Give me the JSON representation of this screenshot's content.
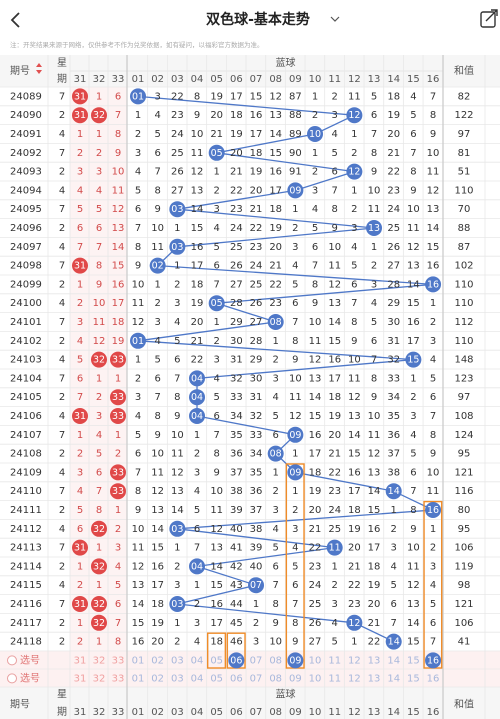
{
  "header": {
    "title": "双色球-基本走势"
  },
  "note": "注：开奖结果来源于网络，仅供参考不作为兑奖依据，如有疑问，以福彩官方数据为准。",
  "table": {
    "columns": {
      "period": "期号",
      "weekday": [
        "星",
        "期"
      ],
      "blue_group": "蓝球",
      "sum": "和值",
      "red": [
        "31",
        "32",
        "33"
      ],
      "blue": [
        "01",
        "02",
        "03",
        "04",
        "05",
        "06",
        "07",
        "08",
        "09",
        "10",
        "11",
        "12",
        "13",
        "14",
        "15",
        "16"
      ]
    },
    "rows": [
      {
        "period": "24089",
        "weekday": 7,
        "red": [
          "31",
          1,
          6
        ],
        "blue": [
          "01",
          3,
          22,
          8,
          19,
          17,
          15,
          12,
          87,
          1,
          2,
          11,
          5,
          18,
          4,
          7
        ],
        "sum": 82
      },
      {
        "period": "24090",
        "weekday": 2,
        "red": [
          "31",
          "32",
          7
        ],
        "blue": [
          1,
          4,
          23,
          9,
          20,
          18,
          16,
          13,
          88,
          2,
          3,
          "12",
          6,
          19,
          5,
          8
        ],
        "sum": 122
      },
      {
        "period": "24091",
        "weekday": 4,
        "red": [
          1,
          1,
          8
        ],
        "blue": [
          2,
          5,
          24,
          10,
          21,
          19,
          17,
          14,
          89,
          "10",
          4,
          1,
          7,
          20,
          6,
          9
        ],
        "sum": 97
      },
      {
        "period": "24092",
        "weekday": 7,
        "red": [
          2,
          2,
          9
        ],
        "blue": [
          3,
          6,
          25,
          11,
          "05",
          20,
          18,
          15,
          90,
          1,
          5,
          2,
          8,
          21,
          7,
          10
        ],
        "sum": 81
      },
      {
        "period": "24093",
        "weekday": 2,
        "red": [
          3,
          3,
          10
        ],
        "blue": [
          4,
          7,
          26,
          12,
          1,
          21,
          19,
          16,
          91,
          2,
          6,
          "12",
          9,
          22,
          8,
          11
        ],
        "sum": 51
      },
      {
        "period": "24094",
        "weekday": 4,
        "red": [
          4,
          4,
          11
        ],
        "blue": [
          5,
          8,
          27,
          13,
          2,
          22,
          20,
          17,
          "09",
          3,
          7,
          1,
          10,
          23,
          9,
          12
        ],
        "sum": 110
      },
      {
        "period": "24095",
        "weekday": 7,
        "red": [
          5,
          5,
          12
        ],
        "blue": [
          6,
          9,
          "03",
          14,
          3,
          23,
          21,
          18,
          1,
          4,
          8,
          2,
          11,
          24,
          10,
          13
        ],
        "sum": 70
      },
      {
        "period": "24096",
        "weekday": 2,
        "red": [
          6,
          6,
          13
        ],
        "blue": [
          7,
          10,
          1,
          15,
          4,
          24,
          22,
          19,
          2,
          5,
          9,
          3,
          "13",
          25,
          11,
          14
        ],
        "sum": 88
      },
      {
        "period": "24097",
        "weekday": 4,
        "red": [
          7,
          7,
          14
        ],
        "blue": [
          8,
          11,
          "03",
          16,
          5,
          25,
          23,
          20,
          3,
          6,
          10,
          4,
          1,
          26,
          12,
          15
        ],
        "sum": 87
      },
      {
        "period": "24098",
        "weekday": 7,
        "red": [
          "31",
          8,
          15
        ],
        "blue": [
          9,
          "02",
          1,
          17,
          6,
          26,
          24,
          21,
          4,
          7,
          11,
          5,
          2,
          27,
          13,
          16
        ],
        "sum": 102
      },
      {
        "period": "24099",
        "weekday": 2,
        "red": [
          1,
          9,
          16
        ],
        "blue": [
          10,
          1,
          2,
          18,
          7,
          27,
          25,
          22,
          5,
          8,
          12,
          6,
          3,
          28,
          14,
          "16"
        ],
        "sum": 110
      },
      {
        "period": "24100",
        "weekday": 4,
        "red": [
          2,
          10,
          17
        ],
        "blue": [
          11,
          2,
          3,
          19,
          "05",
          28,
          26,
          23,
          6,
          9,
          13,
          7,
          4,
          29,
          15,
          1
        ],
        "sum": 110
      },
      {
        "period": "24101",
        "weekday": 7,
        "red": [
          3,
          11,
          18
        ],
        "blue": [
          12,
          3,
          4,
          20,
          1,
          29,
          27,
          "08",
          7,
          10,
          14,
          8,
          5,
          30,
          16,
          2
        ],
        "sum": 112
      },
      {
        "period": "24102",
        "weekday": 2,
        "red": [
          4,
          12,
          19
        ],
        "blue": [
          "01",
          4,
          5,
          21,
          2,
          30,
          28,
          1,
          8,
          11,
          15,
          9,
          6,
          31,
          17,
          3
        ],
        "sum": 110
      },
      {
        "period": "24103",
        "weekday": 4,
        "red": [
          5,
          "32",
          "33"
        ],
        "blue": [
          1,
          5,
          6,
          22,
          3,
          31,
          29,
          2,
          9,
          12,
          16,
          10,
          7,
          32,
          "15",
          4
        ],
        "sum": 148
      },
      {
        "period": "24104",
        "weekday": 7,
        "red": [
          6,
          1,
          1
        ],
        "blue": [
          2,
          6,
          7,
          "04",
          4,
          32,
          30,
          3,
          10,
          13,
          17,
          11,
          8,
          33,
          1,
          5
        ],
        "sum": 123
      },
      {
        "period": "24105",
        "weekday": 2,
        "red": [
          7,
          2,
          "33"
        ],
        "blue": [
          3,
          7,
          8,
          "04",
          5,
          33,
          31,
          4,
          11,
          14,
          18,
          12,
          9,
          34,
          2,
          6
        ],
        "sum": 97
      },
      {
        "period": "24106",
        "weekday": 4,
        "red": [
          "31",
          3,
          "33"
        ],
        "blue": [
          4,
          8,
          9,
          "04",
          6,
          34,
          32,
          5,
          12,
          15,
          19,
          13,
          10,
          35,
          3,
          7
        ],
        "sum": 108
      },
      {
        "period": "24107",
        "weekday": 7,
        "red": [
          1,
          4,
          1
        ],
        "blue": [
          5,
          9,
          10,
          1,
          7,
          35,
          33,
          6,
          "09",
          16,
          20,
          14,
          11,
          36,
          4,
          8
        ],
        "sum": 124
      },
      {
        "period": "24108",
        "weekday": 2,
        "red": [
          2,
          5,
          2
        ],
        "blue": [
          6,
          10,
          11,
          2,
          8,
          36,
          34,
          "08",
          1,
          17,
          21,
          15,
          12,
          37,
          5,
          9
        ],
        "sum": 95
      },
      {
        "period": "24109",
        "weekday": 4,
        "red": [
          3,
          6,
          "33"
        ],
        "blue": [
          7,
          11,
          12,
          3,
          9,
          37,
          35,
          1,
          "09",
          18,
          22,
          16,
          13,
          38,
          6,
          10
        ],
        "sum": 121
      },
      {
        "period": "24110",
        "weekday": 7,
        "red": [
          4,
          7,
          "33"
        ],
        "blue": [
          8,
          12,
          13,
          4,
          10,
          38,
          36,
          2,
          1,
          19,
          23,
          17,
          14,
          "14",
          7,
          11
        ],
        "sum": 116
      },
      {
        "period": "24111",
        "weekday": 2,
        "red": [
          5,
          8,
          1
        ],
        "blue": [
          9,
          13,
          14,
          5,
          11,
          39,
          37,
          3,
          2,
          20,
          24,
          18,
          15,
          1,
          8,
          "16"
        ],
        "sum": 80
      },
      {
        "period": "24112",
        "weekday": 4,
        "red": [
          6,
          "32",
          2
        ],
        "blue": [
          10,
          14,
          "03",
          6,
          12,
          40,
          38,
          4,
          3,
          21,
          25,
          19,
          16,
          2,
          9,
          1
        ],
        "sum": 95
      },
      {
        "period": "24113",
        "weekday": 7,
        "red": [
          "31",
          1,
          3
        ],
        "blue": [
          11,
          15,
          1,
          7,
          13,
          41,
          39,
          5,
          4,
          22,
          "11",
          20,
          17,
          3,
          10,
          2
        ],
        "sum": 106
      },
      {
        "period": "24114",
        "weekday": 2,
        "red": [
          1,
          "32",
          4
        ],
        "blue": [
          12,
          16,
          2,
          "04",
          14,
          42,
          40,
          6,
          5,
          23,
          1,
          21,
          18,
          4,
          11,
          3
        ],
        "sum": 119
      },
      {
        "period": "24115",
        "weekday": 4,
        "red": [
          2,
          1,
          5
        ],
        "blue": [
          13,
          17,
          3,
          1,
          15,
          43,
          "07",
          7,
          6,
          24,
          2,
          22,
          19,
          5,
          12,
          4
        ],
        "sum": 98
      },
      {
        "period": "24116",
        "weekday": 7,
        "red": [
          "31",
          "32",
          6
        ],
        "blue": [
          14,
          18,
          "03",
          2,
          16,
          44,
          1,
          8,
          7,
          25,
          3,
          23,
          20,
          6,
          13,
          5
        ],
        "sum": 121
      },
      {
        "period": "24117",
        "weekday": 2,
        "red": [
          1,
          "32",
          7
        ],
        "blue": [
          15,
          19,
          1,
          3,
          17,
          45,
          2,
          9,
          8,
          26,
          4,
          "12",
          21,
          7,
          14,
          6
        ],
        "sum": 106
      },
      {
        "period": "24118",
        "weekday": 2,
        "red": [
          2,
          1,
          8
        ],
        "blue": [
          16,
          20,
          2,
          4,
          18,
          46,
          3,
          10,
          9,
          27,
          5,
          1,
          22,
          "14",
          15,
          7
        ],
        "sum": 41
      }
    ],
    "select_rows": [
      {
        "label": "选号",
        "red": [
          "31",
          "32",
          "33"
        ],
        "blue": [
          "01",
          "02",
          "03",
          "04",
          "05",
          "06",
          "07",
          "08",
          "09",
          "10",
          "11",
          "12",
          "13",
          "14",
          "15",
          "16"
        ],
        "highlight": [
          5,
          8,
          15
        ]
      },
      {
        "label": "选号",
        "red": [
          "31",
          "32",
          "33"
        ],
        "blue": [
          "01",
          "02",
          "03",
          "04",
          "05",
          "06",
          "07",
          "08",
          "09",
          "10",
          "11",
          "12",
          "13",
          "14",
          "15",
          "16"
        ],
        "highlight": []
      }
    ]
  }
}
